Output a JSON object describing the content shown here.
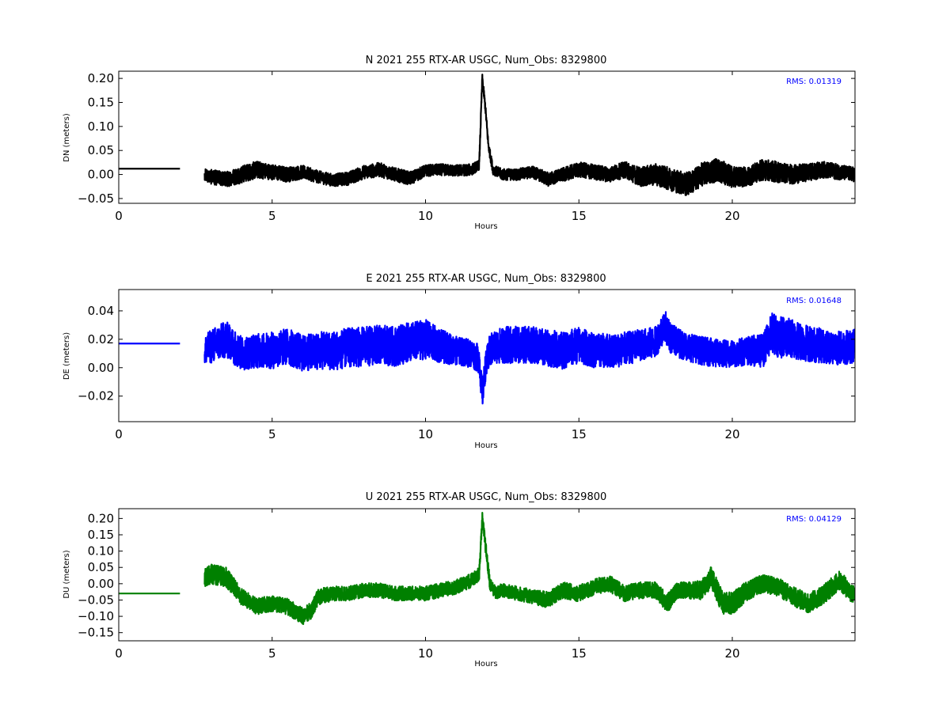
{
  "chart_data": [
    {
      "type": "line",
      "title": "N 2021 255 RTX-AR  USGC, Num_Obs: 8329800",
      "xlabel": "Hours",
      "ylabel": "DN (meters)",
      "xlim": [
        0,
        24
      ],
      "ylim": [
        -0.06,
        0.215
      ],
      "xticks": [
        0,
        5,
        10,
        15,
        20
      ],
      "xtick_labels": [
        "0",
        "5",
        "10",
        "15",
        "20"
      ],
      "yticks": [
        -0.05,
        0.0,
        0.05,
        0.1,
        0.15,
        0.2
      ],
      "ytick_labels": [
        "−0.05",
        "0.00",
        "0.05",
        "0.10",
        "0.15",
        "0.20"
      ],
      "color": "#000000",
      "annotation": "RMS:  0.01319",
      "series": [
        {
          "x": [
            0,
            0.5,
            1.0,
            1.5,
            2.0,
            2.8,
            3.0,
            3.5,
            4.0,
            4.5,
            5.0,
            5.5,
            6.0,
            6.5,
            7.0,
            7.5,
            8.0,
            8.5,
            9.0,
            9.5,
            10.0,
            10.5,
            11.0,
            11.5,
            11.75,
            11.85,
            11.95,
            12.05,
            12.2,
            12.5,
            13.0,
            13.5,
            14.0,
            14.5,
            15.0,
            15.5,
            16.0,
            16.5,
            17.0,
            17.5,
            18.0,
            18.5,
            18.7,
            19.0,
            19.5,
            20.0,
            20.5,
            21.0,
            21.5,
            22.0,
            22.5,
            23.0,
            23.5,
            24.0
          ],
          "y": [
            0.012,
            0.012,
            0.012,
            0.012,
            0.012,
            0.0,
            -0.005,
            -0.01,
            0.0,
            0.01,
            0.005,
            0.0,
            0.005,
            -0.005,
            -0.012,
            -0.008,
            0.005,
            0.01,
            0.0,
            -0.008,
            0.008,
            0.01,
            0.008,
            0.01,
            0.02,
            0.2,
            0.14,
            0.06,
            0.01,
            0.0,
            0.0,
            0.005,
            -0.01,
            0.0,
            0.01,
            0.005,
            0.0,
            0.01,
            -0.005,
            0.0,
            -0.01,
            -0.02,
            -0.015,
            0.0,
            0.01,
            -0.005,
            -0.005,
            0.01,
            0.005,
            0.0,
            0.005,
            0.01,
            0.005,
            0.0
          ],
          "band": [
            0.0,
            0.0,
            0.0,
            0.0,
            0.0,
            0.012,
            0.015,
            0.016,
            0.018,
            0.018,
            0.016,
            0.016,
            0.014,
            0.013,
            0.013,
            0.014,
            0.014,
            0.015,
            0.014,
            0.014,
            0.012,
            0.012,
            0.012,
            0.012,
            0.01,
            0.01,
            0.01,
            0.01,
            0.01,
            0.012,
            0.012,
            0.013,
            0.014,
            0.014,
            0.016,
            0.016,
            0.016,
            0.017,
            0.02,
            0.022,
            0.024,
            0.025,
            0.024,
            0.024,
            0.025,
            0.022,
            0.02,
            0.022,
            0.022,
            0.02,
            0.018,
            0.017,
            0.016,
            0.015
          ]
        }
      ]
    },
    {
      "type": "line",
      "title": "E 2021 255 RTX-AR  USGC, Num_Obs: 8329800",
      "xlabel": "Hours",
      "ylabel": "DE (meters)",
      "xlim": [
        0,
        24
      ],
      "ylim": [
        -0.038,
        0.055
      ],
      "xticks": [
        0,
        5,
        10,
        15,
        20
      ],
      "xtick_labels": [
        "0",
        "5",
        "10",
        "15",
        "20"
      ],
      "yticks": [
        -0.02,
        0.0,
        0.02,
        0.04
      ],
      "ytick_labels": [
        "−0.02",
        "0.00",
        "0.02",
        "0.04"
      ],
      "color": "#0000ff",
      "annotation": "RMS:  0.01648",
      "series": [
        {
          "x": [
            0,
            0.5,
            1.0,
            1.5,
            2.0,
            2.8,
            3.0,
            3.5,
            4.0,
            4.5,
            5.0,
            5.5,
            6.0,
            6.5,
            7.0,
            7.5,
            8.0,
            8.5,
            9.0,
            9.5,
            10.0,
            10.5,
            11.0,
            11.5,
            11.75,
            11.85,
            11.95,
            12.1,
            12.3,
            12.5,
            13.0,
            13.5,
            14.0,
            14.5,
            15.0,
            15.5,
            16.0,
            16.5,
            17.0,
            17.5,
            17.8,
            18.0,
            18.5,
            19.0,
            19.5,
            20.0,
            20.5,
            21.0,
            21.3,
            21.5,
            22.0,
            22.5,
            23.0,
            23.5,
            24.0
          ],
          "y": [
            0.017,
            0.017,
            0.017,
            0.017,
            0.017,
            0.012,
            0.015,
            0.02,
            0.01,
            0.012,
            0.012,
            0.015,
            0.01,
            0.012,
            0.012,
            0.014,
            0.015,
            0.016,
            0.015,
            0.018,
            0.02,
            0.015,
            0.012,
            0.01,
            0.006,
            -0.02,
            0.0,
            0.012,
            0.015,
            0.016,
            0.016,
            0.016,
            0.014,
            0.012,
            0.016,
            0.012,
            0.012,
            0.013,
            0.016,
            0.018,
            0.03,
            0.02,
            0.015,
            0.012,
            0.01,
            0.01,
            0.012,
            0.012,
            0.025,
            0.022,
            0.02,
            0.017,
            0.015,
            0.014,
            0.015
          ],
          "band": [
            0.0,
            0.0,
            0.0,
            0.0,
            0.0,
            0.01,
            0.012,
            0.013,
            0.012,
            0.012,
            0.013,
            0.013,
            0.013,
            0.013,
            0.014,
            0.014,
            0.014,
            0.014,
            0.014,
            0.014,
            0.014,
            0.012,
            0.01,
            0.01,
            0.01,
            0.01,
            0.01,
            0.012,
            0.012,
            0.013,
            0.013,
            0.013,
            0.013,
            0.013,
            0.013,
            0.012,
            0.012,
            0.012,
            0.011,
            0.011,
            0.011,
            0.011,
            0.01,
            0.01,
            0.01,
            0.01,
            0.01,
            0.012,
            0.014,
            0.015,
            0.014,
            0.013,
            0.012,
            0.012,
            0.012
          ]
        }
      ]
    },
    {
      "type": "line",
      "title": "U 2021 255 RTX-AR  USGC, Num_Obs: 8329800",
      "xlabel": "Hours",
      "ylabel": "DU (meters)",
      "xlim": [
        0,
        24
      ],
      "ylim": [
        -0.175,
        0.23
      ],
      "xticks": [
        0,
        5,
        10,
        15,
        20
      ],
      "xtick_labels": [
        "0",
        "5",
        "10",
        "15",
        "20"
      ],
      "yticks": [
        -0.15,
        -0.1,
        -0.05,
        0.0,
        0.05,
        0.1,
        0.15,
        0.2
      ],
      "ytick_labels": [
        "−0.15",
        "−0.10",
        "−0.05",
        "0.00",
        "0.05",
        "0.10",
        "0.15",
        "0.20"
      ],
      "color": "#008000",
      "annotation": "RMS:  0.04129",
      "series": [
        {
          "x": [
            0,
            0.5,
            1.0,
            1.5,
            2.0,
            2.8,
            3.0,
            3.5,
            4.0,
            4.5,
            5.0,
            5.5,
            6.0,
            6.3,
            6.5,
            7.0,
            7.5,
            8.0,
            8.5,
            9.0,
            9.5,
            10.0,
            10.5,
            11.0,
            11.5,
            11.75,
            11.85,
            11.95,
            12.1,
            12.3,
            12.5,
            13.0,
            13.5,
            14.0,
            14.5,
            15.0,
            15.5,
            16.0,
            16.5,
            17.0,
            17.5,
            17.9,
            18.2,
            18.5,
            19.0,
            19.3,
            19.7,
            20.0,
            20.5,
            21.0,
            21.5,
            22.0,
            22.5,
            23.0,
            23.5,
            24.0
          ],
          "y": [
            -0.03,
            -0.03,
            -0.03,
            -0.03,
            -0.03,
            0.02,
            0.03,
            0.02,
            -0.04,
            -0.07,
            -0.06,
            -0.07,
            -0.1,
            -0.08,
            -0.04,
            -0.03,
            -0.03,
            -0.02,
            -0.02,
            -0.03,
            -0.03,
            -0.03,
            -0.02,
            -0.01,
            0.01,
            0.03,
            0.2,
            0.12,
            0.0,
            -0.03,
            -0.02,
            -0.03,
            -0.04,
            -0.05,
            -0.02,
            -0.03,
            -0.01,
            0.0,
            -0.03,
            -0.02,
            -0.02,
            -0.06,
            -0.02,
            -0.02,
            -0.02,
            0.02,
            -0.06,
            -0.06,
            -0.02,
            0.0,
            -0.01,
            -0.04,
            -0.06,
            -0.03,
            0.01,
            -0.04
          ],
          "band": [
            0.0,
            0.0,
            0.0,
            0.0,
            0.0,
            0.03,
            0.03,
            0.03,
            0.025,
            0.025,
            0.025,
            0.025,
            0.025,
            0.025,
            0.025,
            0.022,
            0.022,
            0.022,
            0.022,
            0.022,
            0.022,
            0.022,
            0.022,
            0.022,
            0.022,
            0.02,
            0.02,
            0.02,
            0.02,
            0.02,
            0.022,
            0.022,
            0.022,
            0.025,
            0.025,
            0.025,
            0.025,
            0.025,
            0.025,
            0.025,
            0.025,
            0.03,
            0.025,
            0.025,
            0.03,
            0.035,
            0.035,
            0.035,
            0.03,
            0.028,
            0.028,
            0.03,
            0.03,
            0.03,
            0.03,
            0.03
          ]
        }
      ]
    }
  ]
}
